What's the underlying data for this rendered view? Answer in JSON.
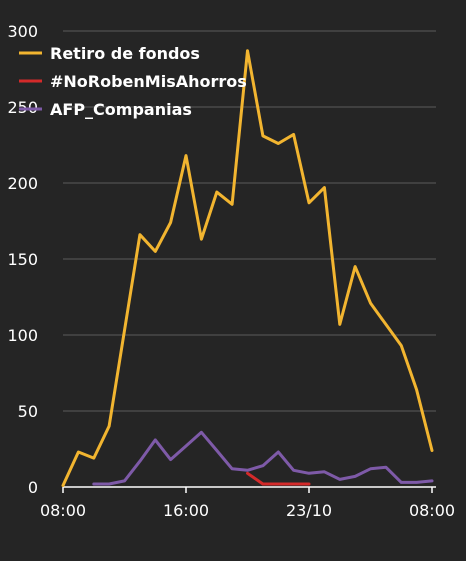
{
  "chart_data": {
    "type": "line",
    "ylim": [
      0,
      300
    ],
    "y_ticks": [
      "0",
      "50",
      "100",
      "150",
      "200",
      "250",
      "300"
    ],
    "x_ticks": [
      {
        "at": 0,
        "label": "08:00"
      },
      {
        "at": 8,
        "label": "16:00"
      },
      {
        "at": 16,
        "label": "23/10"
      },
      {
        "at": 24,
        "label": "08:00"
      }
    ],
    "grid": true,
    "legend_position": "top-left",
    "series": [
      {
        "name": "Retiro de fondos",
        "color": "#f2b530",
        "points": [
          [
            0,
            1
          ],
          [
            1,
            23
          ],
          [
            2,
            19
          ],
          [
            3,
            40
          ],
          [
            4,
            103
          ],
          [
            5,
            166
          ],
          [
            6,
            155
          ],
          [
            7,
            174
          ],
          [
            8,
            218
          ],
          [
            9,
            163
          ],
          [
            10,
            194
          ],
          [
            11,
            186
          ],
          [
            12,
            287
          ],
          [
            13,
            231
          ],
          [
            14,
            226
          ],
          [
            15,
            232
          ],
          [
            16,
            187
          ],
          [
            17,
            197
          ],
          [
            18,
            107
          ],
          [
            19,
            145
          ],
          [
            20,
            121
          ],
          [
            21,
            107
          ],
          [
            22,
            93
          ],
          [
            23,
            64
          ],
          [
            24,
            24
          ]
        ]
      },
      {
        "name": "#NoRobenMisAhorros",
        "color": "#d42a2a",
        "points": [
          [
            12,
            9
          ],
          [
            13,
            2
          ],
          [
            14,
            2
          ],
          [
            15,
            2
          ],
          [
            16,
            2
          ]
        ]
      },
      {
        "name": "AFP_Companias",
        "color": "#7e5aa8",
        "points": [
          [
            2,
            2
          ],
          [
            3,
            2
          ],
          [
            4,
            4
          ],
          [
            5,
            17
          ],
          [
            6,
            31
          ],
          [
            7,
            18
          ],
          [
            8,
            27
          ],
          [
            9,
            36
          ],
          [
            10,
            24
          ],
          [
            11,
            12
          ],
          [
            12,
            11
          ],
          [
            13,
            14
          ],
          [
            14,
            23
          ],
          [
            15,
            11
          ],
          [
            16,
            9
          ],
          [
            17,
            10
          ],
          [
            18,
            5
          ],
          [
            19,
            7
          ],
          [
            20,
            12
          ],
          [
            21,
            13
          ],
          [
            22,
            3
          ],
          [
            23,
            3
          ],
          [
            24,
            4
          ]
        ]
      }
    ]
  }
}
